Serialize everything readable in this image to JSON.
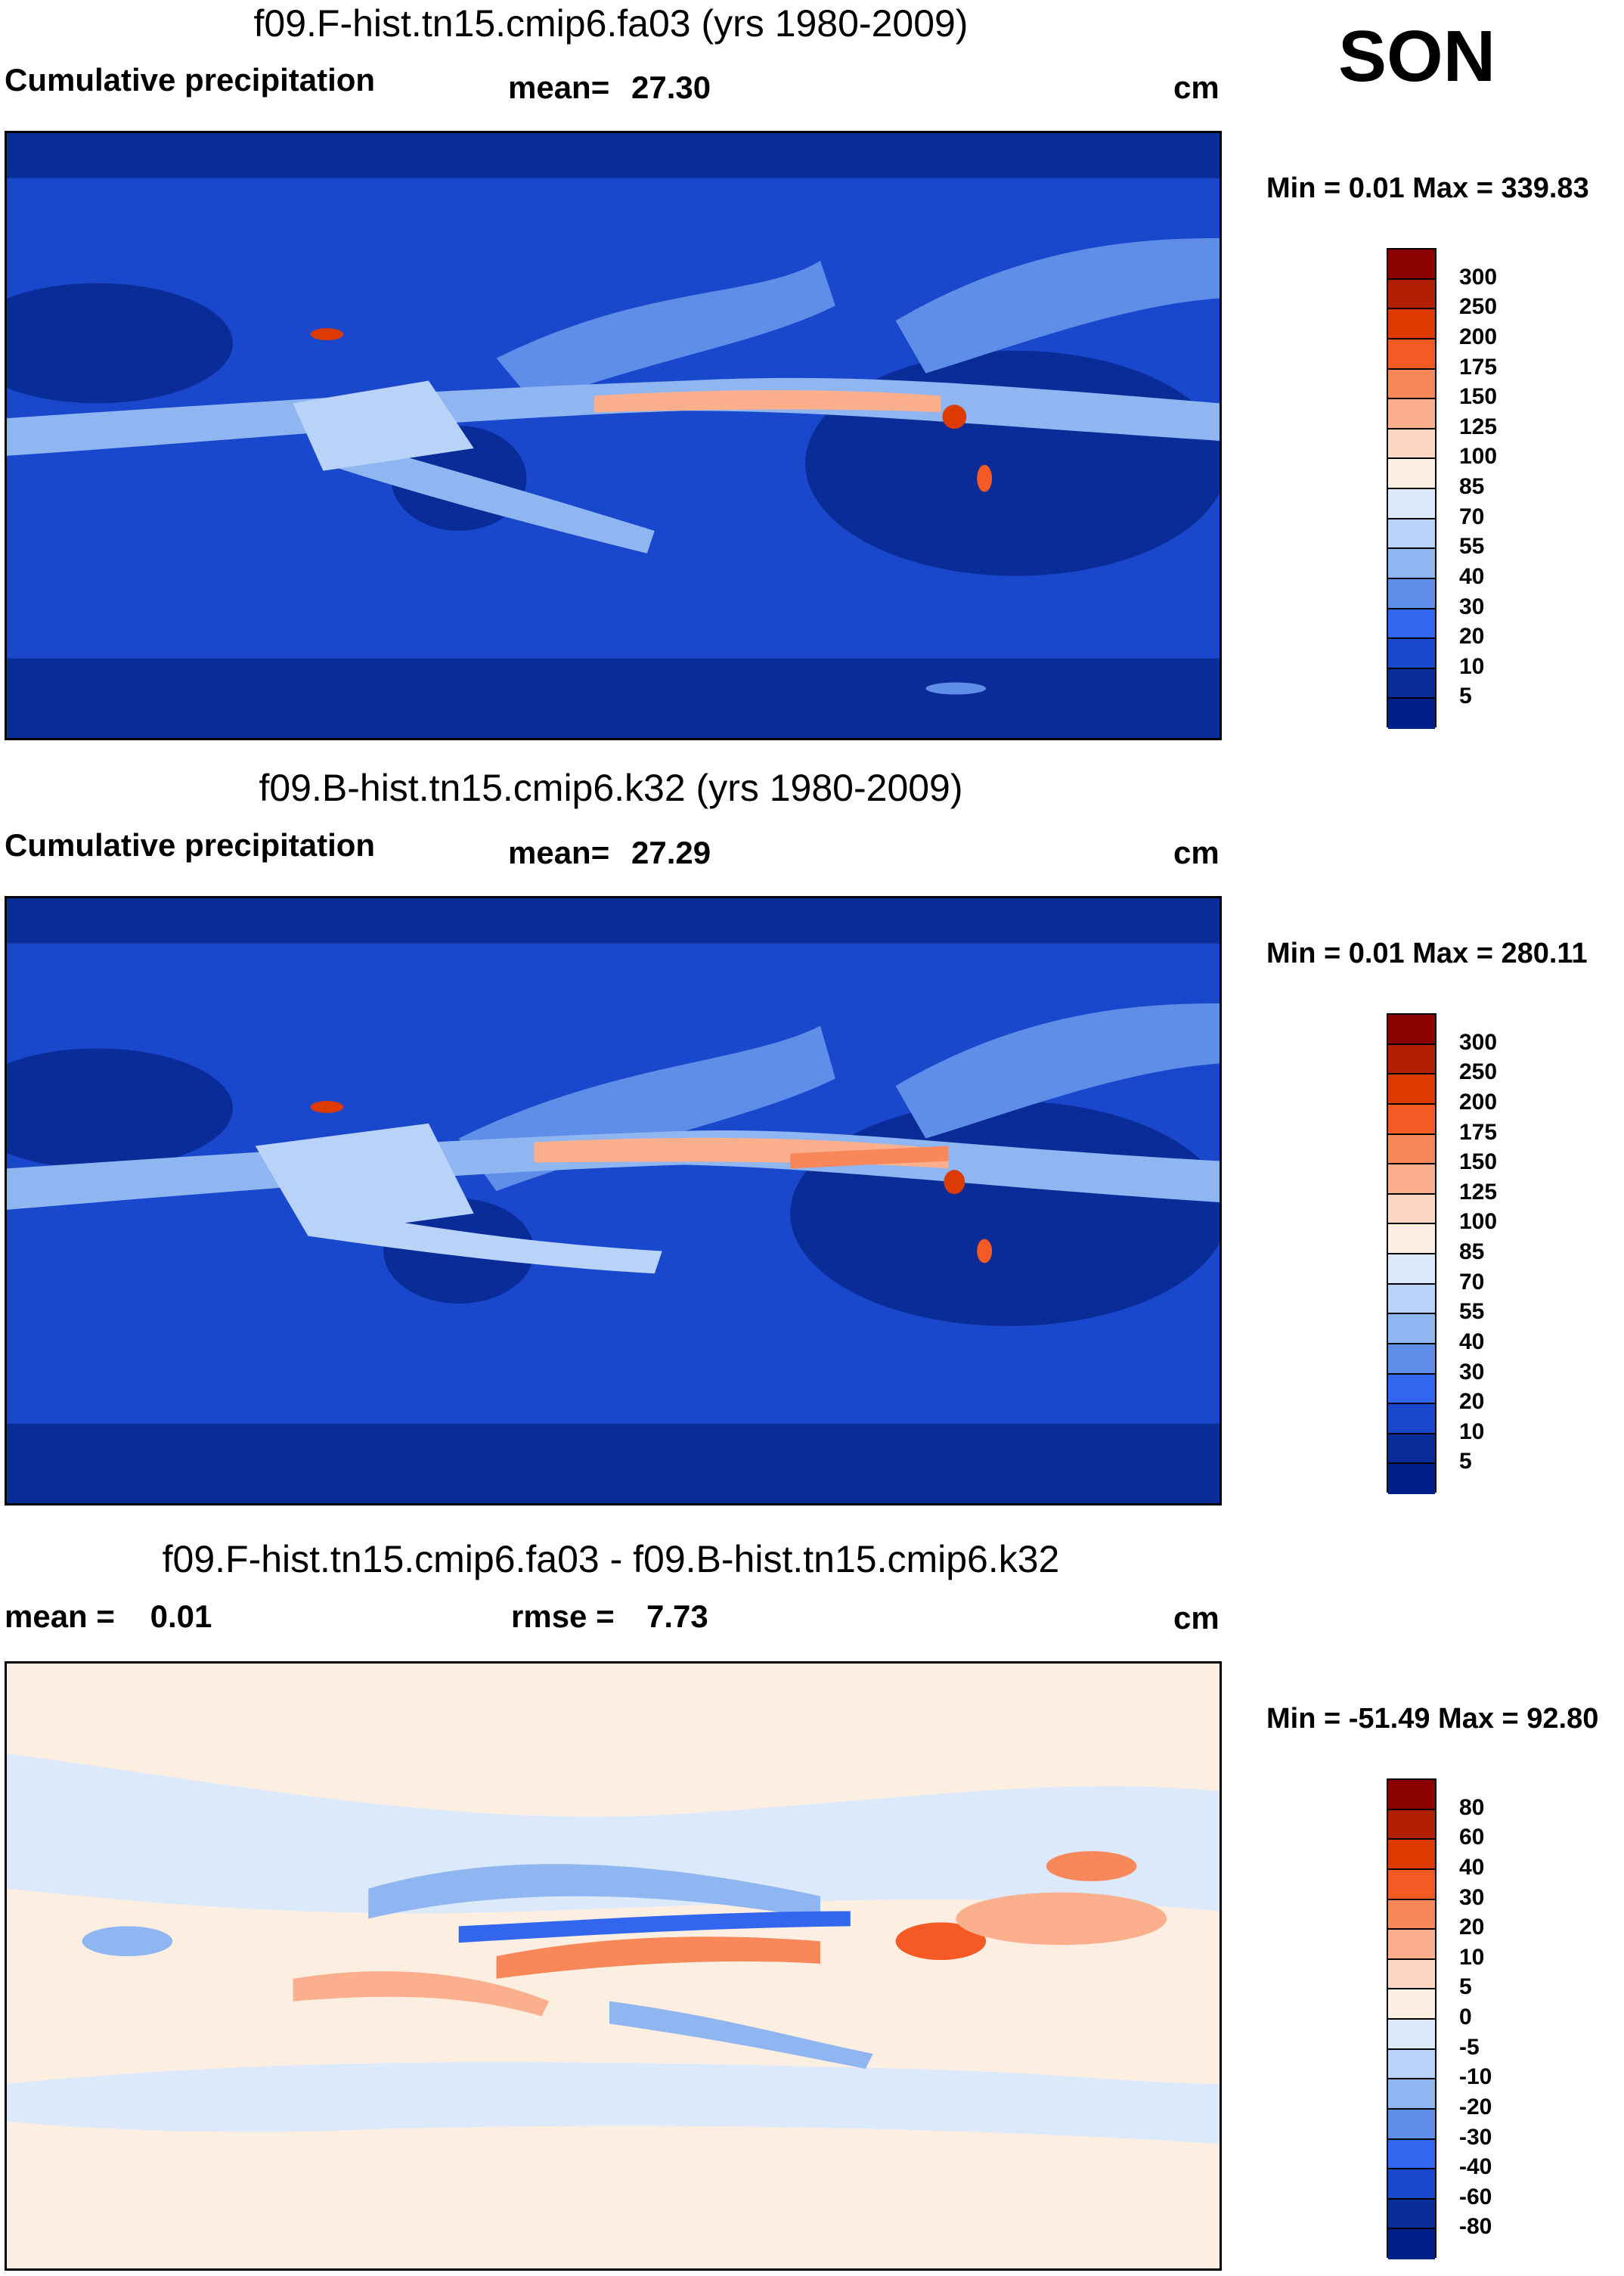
{
  "season": "SON",
  "units": "cm",
  "panels": [
    {
      "title": "f09.F-hist.tn15.cmip6.fa03 (yrs 1980-2009)",
      "left_label": "Cumulative precipitation",
      "stat_label": "mean=",
      "stat_value": "27.30",
      "minmax": "Min =   0.01 Max = 339.83",
      "levels": [
        "300",
        "250",
        "200",
        "175",
        "150",
        "125",
        "100",
        "85",
        "70",
        "55",
        "40",
        "30",
        "20",
        "10",
        "5"
      ],
      "colors": [
        "#8b0000",
        "#b21e00",
        "#dd3a00",
        "#f55a24",
        "#f8875a",
        "#fbaf8c",
        "#fdd7c2",
        "#fdeee2",
        "#dce9fb",
        "#b8d3f7",
        "#8fb6f1",
        "#5f8ee9",
        "#3366ee",
        "#1a48cc",
        "#0a2c99",
        "#001f88"
      ]
    },
    {
      "title": "f09.B-hist.tn15.cmip6.k32 (yrs 1980-2009)",
      "left_label": "Cumulative precipitation",
      "stat_label": "mean=",
      "stat_value": "27.29",
      "minmax": "Min =   0.01 Max = 280.11",
      "levels": [
        "300",
        "250",
        "200",
        "175",
        "150",
        "125",
        "100",
        "85",
        "70",
        "55",
        "40",
        "30",
        "20",
        "10",
        "5"
      ],
      "colors": [
        "#8b0000",
        "#b21e00",
        "#dd3a00",
        "#f55a24",
        "#f8875a",
        "#fbaf8c",
        "#fdd7c2",
        "#fdeee2",
        "#dce9fb",
        "#b8d3f7",
        "#8fb6f1",
        "#5f8ee9",
        "#3366ee",
        "#1a48cc",
        "#0a2c99",
        "#001f88"
      ]
    },
    {
      "title": "f09.F-hist.tn15.cmip6.fa03 - f09.B-hist.tn15.cmip6.k32",
      "left_label": "mean =    0.01",
      "stat_label": "rmse =",
      "stat_value": "7.73",
      "minmax": "Min = -51.49 Max =  92.80",
      "levels": [
        "80",
        "60",
        "40",
        "30",
        "20",
        "10",
        "5",
        "0",
        "-5",
        "-10",
        "-20",
        "-30",
        "-40",
        "-60",
        "-80"
      ],
      "colors": [
        "#8b0000",
        "#b21e00",
        "#dd3a00",
        "#f55a24",
        "#f8875a",
        "#fbaf8c",
        "#fdd7c2",
        "#fdeee2",
        "#dce9fb",
        "#b8d3f7",
        "#8fb6f1",
        "#5f8ee9",
        "#3366ee",
        "#1a48cc",
        "#0a2c99",
        "#001f88"
      ]
    }
  ]
}
